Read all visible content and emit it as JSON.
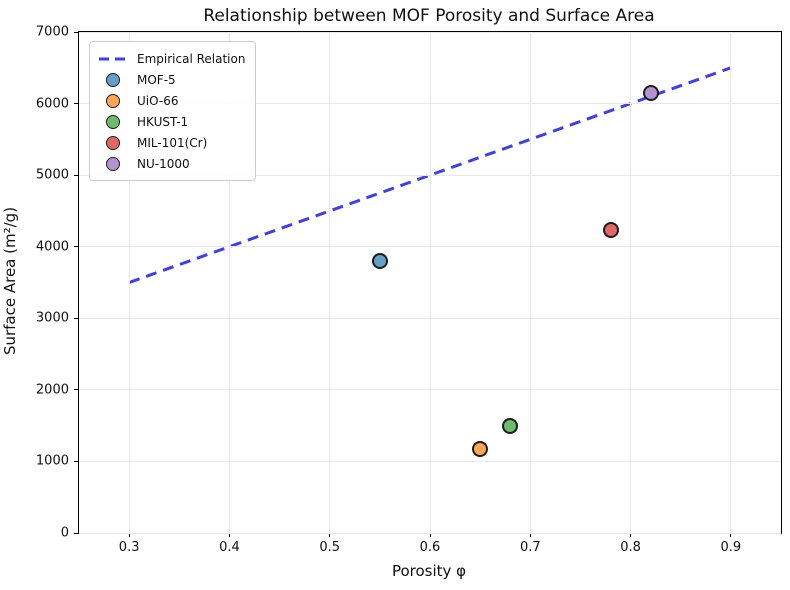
{
  "chart_data": {
    "type": "scatter",
    "title": "Relationship between MOF Porosity and Surface Area",
    "xlabel": "Porosity φ",
    "ylabel": "Surface Area (m²/g)",
    "xlim": [
      0.25,
      0.95
    ],
    "ylim": [
      0,
      7000
    ],
    "xticks": [
      0.3,
      0.4,
      0.5,
      0.6,
      0.7,
      0.8,
      0.9
    ],
    "xtick_labels": [
      "0.3",
      "0.4",
      "0.5",
      "0.6",
      "0.7",
      "0.8",
      "0.9"
    ],
    "yticks": [
      0,
      1000,
      2000,
      3000,
      4000,
      5000,
      6000,
      7000
    ],
    "ytick_labels": [
      "0",
      "1000",
      "2000",
      "3000",
      "4000",
      "5000",
      "6000",
      "7000"
    ],
    "grid": true,
    "grid_color": "#e7e7e7",
    "spine_color": "#000000",
    "marker_edge_color": "#1c1c1c",
    "legend_position": "upper left",
    "line_series": {
      "name": "Empirical Relation",
      "style": "dashed",
      "color": "#3d3df2",
      "points": [
        [
          0.3,
          3500
        ],
        [
          0.9,
          6500
        ]
      ]
    },
    "scatter_series": [
      {
        "name": "MOF-5",
        "x": 0.55,
        "y": 3800,
        "color": "#62a0ca"
      },
      {
        "name": "UiO-66",
        "x": 0.65,
        "y": 1180,
        "color": "#ffa556"
      },
      {
        "name": "HKUST-1",
        "x": 0.68,
        "y": 1500,
        "color": "#6bbc6b"
      },
      {
        "name": "MIL-101(Cr)",
        "x": 0.78,
        "y": 4230,
        "color": "#e26868"
      },
      {
        "name": "NU-1000",
        "x": 0.82,
        "y": 6150,
        "color": "#b494d0"
      }
    ]
  }
}
